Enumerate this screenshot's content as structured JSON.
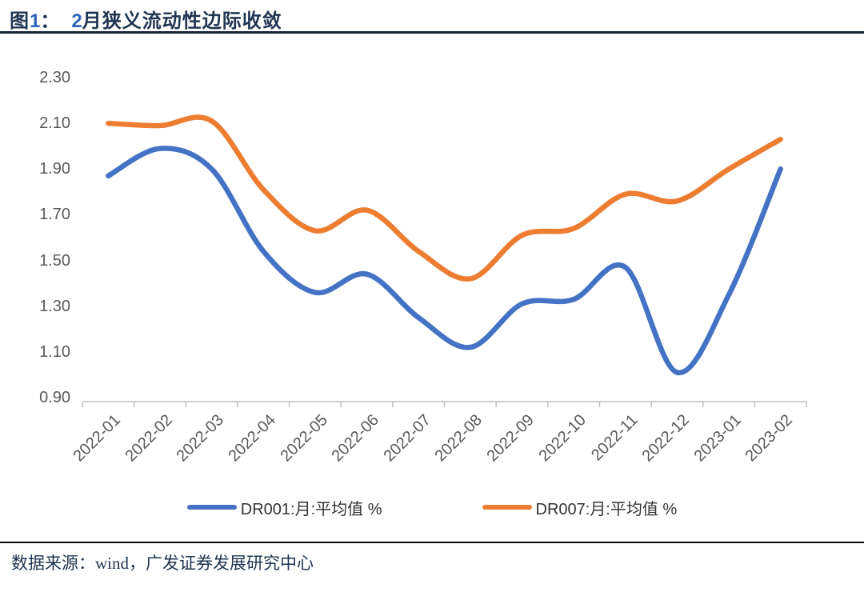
{
  "header": {
    "fig_label": "图",
    "fig_number": "1",
    "separator": "：",
    "month_number": "2",
    "title_text": "月狭义流动性边际收敛"
  },
  "footer": {
    "source": "数据来源：wind，广发证券发展研究中心"
  },
  "colors": {
    "dr001_blue": "#4472C4",
    "dr007_orange": "#ED7D31",
    "axis_text_gray": "#595959",
    "axis_line_gray": "#BFBFBF",
    "title_navy": "#1F3551",
    "title_number_blue": "#2D64B5"
  },
  "chart_data": {
    "type": "line",
    "title": "图1：2月狭义流动性边际收敛",
    "categories": [
      "2022-01",
      "2022-02",
      "2022-03",
      "2022-04",
      "2022-05",
      "2022-06",
      "2022-07",
      "2022-08",
      "2022-09",
      "2022-10",
      "2022-11",
      "2022-12",
      "2023-01",
      "2023-02"
    ],
    "series": [
      {
        "name": "DR001:月:平均值 %",
        "color": "#4472C4",
        "values": [
          1.87,
          1.99,
          1.9,
          1.54,
          1.36,
          1.44,
          1.25,
          1.12,
          1.31,
          1.33,
          1.47,
          1.01,
          1.35,
          1.9
        ]
      },
      {
        "name": "DR007:月:平均值 %",
        "color": "#ED7D31",
        "values": [
          2.1,
          2.09,
          2.11,
          1.81,
          1.63,
          1.72,
          1.54,
          1.42,
          1.61,
          1.64,
          1.79,
          1.76,
          1.9,
          2.03
        ]
      }
    ],
    "xlabel": "",
    "ylabel": "",
    "ylim": [
      0.9,
      2.3
    ],
    "ytick_step": 0.2,
    "yticks": [
      "2.30",
      "2.10",
      "1.90",
      "1.70",
      "1.50",
      "1.30",
      "1.10",
      "0.90"
    ],
    "grid": false,
    "smooth": true,
    "legend_position": "bottom"
  }
}
